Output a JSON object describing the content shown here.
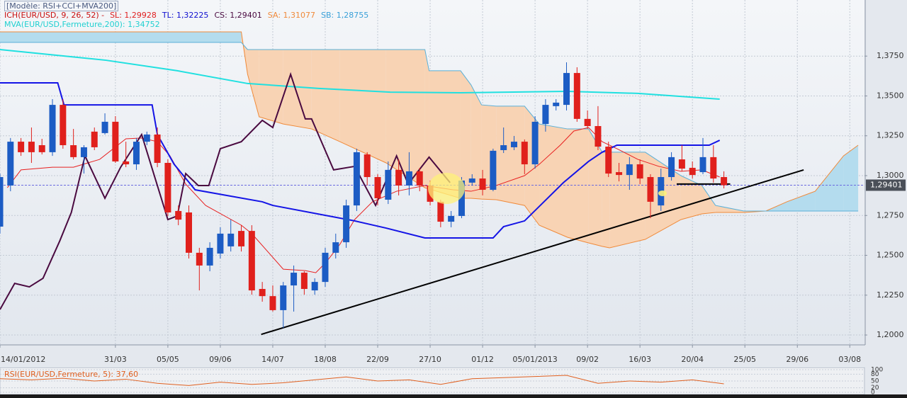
{
  "chart_data": {
    "type": "candlestick",
    "legend": [
      [
        {
          "text": "[Modèle: RSI+CCI+MVA200]",
          "color": "#4a5a80"
        }
      ],
      [
        {
          "text": "ICH(EUR/USD, 9, 26, 52) -",
          "color": "#c81010"
        },
        {
          "text": "SL: 1,29928",
          "color": "#e02020"
        },
        {
          "text": "TL: 1,32225",
          "color": "#1010d0"
        },
        {
          "text": "CS: 1,29401",
          "color": "#4a0a40"
        },
        {
          "text": "SA: 1,31077",
          "color": "#f08a3a"
        },
        {
          "text": "SB: 1,28755",
          "color": "#3aa0d8"
        }
      ],
      [
        {
          "text": "MVA(EUR/USD,Fermeture,200): 1,34752",
          "color": "#20d0d0"
        }
      ]
    ],
    "xlim": [
      0,
      82.4
    ],
    "ylim": [
      1.1938,
      1.4102
    ],
    "grid": true,
    "xticks": [
      {
        "value": 0,
        "label": "14/01/2012"
      },
      {
        "value": 11,
        "label": "31/03"
      },
      {
        "value": 16,
        "label": "05/05"
      },
      {
        "value": 21,
        "label": "09/06"
      },
      {
        "value": 26,
        "label": "14/07"
      },
      {
        "value": 31,
        "label": "18/08"
      },
      {
        "value": 36,
        "label": "22/09"
      },
      {
        "value": 41,
        "label": "27/10"
      },
      {
        "value": 46,
        "label": "01/12"
      },
      {
        "value": 51,
        "label": "05/01/2013"
      },
      {
        "value": 56,
        "label": "09/02"
      },
      {
        "value": 61,
        "label": "16/03"
      },
      {
        "value": 66,
        "label": "20/04"
      },
      {
        "value": 71,
        "label": "25/05"
      },
      {
        "value": 76,
        "label": "29/06"
      },
      {
        "value": 81,
        "label": "03/08"
      }
    ],
    "yticks": [
      {
        "value": 1.2,
        "label": "1,2000"
      },
      {
        "value": 1.225,
        "label": "1,2250"
      },
      {
        "value": 1.25,
        "label": "1,2500"
      },
      {
        "value": 1.275,
        "label": "1,2750"
      },
      {
        "value": 1.3,
        "label": "1,3000"
      },
      {
        "value": 1.325,
        "label": "1,3250"
      },
      {
        "value": 1.35,
        "label": "1,3500"
      },
      {
        "value": 1.375,
        "label": "1,3750"
      }
    ],
    "last_price": {
      "value": 1.29401,
      "label": "1,29401"
    },
    "candles": {
      "up_color": "#1c5cc4",
      "down_color": "#e0201c",
      "x": [
        0,
        1,
        2,
        3,
        4,
        5,
        6,
        7,
        8,
        9,
        10,
        11,
        12,
        13,
        14,
        15,
        16,
        17,
        18,
        19,
        20,
        21,
        22,
        23,
        24,
        25,
        26,
        27,
        28,
        29,
        30,
        31,
        32,
        33,
        34,
        35,
        36,
        37,
        38,
        39,
        40,
        41,
        42,
        43,
        44,
        45,
        46,
        47,
        48,
        49,
        50,
        51,
        52,
        53,
        54,
        55,
        56,
        57,
        58,
        59,
        60,
        61,
        62,
        63,
        64,
        65,
        66,
        67,
        68,
        69
      ],
      "open": [
        1.268,
        1.2938,
        1.3213,
        1.3213,
        1.3191,
        1.3147,
        1.3444,
        1.3191,
        1.3116,
        1.3276,
        1.3267,
        1.3338,
        1.3089,
        1.3071,
        1.3213,
        1.3258,
        1.308,
        1.2778,
        1.2769,
        1.2516,
        1.2436,
        1.2511,
        1.2556,
        1.2653,
        1.2653,
        1.2289,
        1.2244,
        1.2156,
        1.2311,
        1.2391,
        1.228,
        1.2333,
        1.2516,
        1.2582,
        1.2813,
        1.3133,
        1.2991,
        1.2849,
        1.3036,
        1.2938,
        1.3027,
        1.2938,
        1.2836,
        1.2711,
        1.2747,
        1.2956,
        1.2982,
        1.2911,
        1.316,
        1.3178,
        1.3213,
        1.3071,
        1.3324,
        1.3436,
        1.3444,
        1.3644,
        1.3356,
        1.3311,
        1.3182,
        1.3022,
        1.3004,
        1.3071,
        1.2991,
        1.2813,
        1.2991,
        1.3102,
        1.3049,
        1.3022,
        1.3116,
        1.2991
      ],
      "high": [
        1.3013,
        1.3236,
        1.3236,
        1.3302,
        1.3231,
        1.348,
        1.348,
        1.3293,
        1.3191,
        1.3302,
        1.3391,
        1.3373,
        1.3213,
        1.3236,
        1.3276,
        1.3302,
        1.3102,
        1.2813,
        1.2813,
        1.2547,
        1.2582,
        1.2676,
        1.2724,
        1.2689,
        1.2689,
        1.2333,
        1.2311,
        1.2333,
        1.2436,
        1.24,
        1.2356,
        1.2547,
        1.2636,
        1.2849,
        1.3169,
        1.3147,
        1.3009,
        1.3089,
        1.3102,
        1.3147,
        1.3049,
        1.2969,
        1.2849,
        1.2778,
        1.2991,
        1.3009,
        1.3036,
        1.3169,
        1.3302,
        1.3249,
        1.3227,
        1.3373,
        1.348,
        1.348,
        1.3711,
        1.368,
        1.3409,
        1.3436,
        1.3213,
        1.308,
        1.3116,
        1.3102,
        1.3009,
        1.3044,
        1.3147,
        1.3191,
        1.3089,
        1.3236,
        1.3191,
        1.3027
      ],
      "low": [
        1.2636,
        1.2902,
        1.3124,
        1.308,
        1.3133,
        1.3124,
        1.3169,
        1.3102,
        1.3013,
        1.316,
        1.3258,
        1.308,
        1.3053,
        1.3036,
        1.3191,
        1.3053,
        1.2747,
        1.2689,
        1.248,
        1.228,
        1.24,
        1.248,
        1.2524,
        1.2524,
        1.2253,
        1.2209,
        1.2147,
        1.2044,
        1.2147,
        1.2253,
        1.2253,
        1.2302,
        1.248,
        1.2547,
        1.2778,
        1.2938,
        1.2813,
        1.2822,
        1.2876,
        1.2876,
        1.2902,
        1.2813,
        1.2676,
        1.2676,
        1.2733,
        1.2938,
        1.2876,
        1.2902,
        1.3142,
        1.316,
        1.3009,
        1.3044,
        1.3276,
        1.3409,
        1.3409,
        1.3338,
        1.3293,
        1.316,
        1.2991,
        1.2964,
        1.2911,
        1.2947,
        1.2733,
        1.2778,
        1.2969,
        1.3027,
        1.2982,
        1.3009,
        1.2956,
        1.292
      ],
      "close": [
        1.2991,
        1.3213,
        1.3147,
        1.3147,
        1.3147,
        1.3444,
        1.3191,
        1.3116,
        1.3178,
        1.3178,
        1.3338,
        1.3089,
        1.3071,
        1.3213,
        1.3258,
        1.308,
        1.2769,
        1.2724,
        1.2516,
        1.2436,
        1.2547,
        1.2636,
        1.2636,
        1.2556,
        1.228,
        1.2244,
        1.2156,
        1.2311,
        1.2391,
        1.2289,
        1.2333,
        1.2516,
        1.2582,
        1.2813,
        1.3147,
        1.2991,
        1.2858,
        1.3036,
        1.2938,
        1.3027,
        1.2938,
        1.2836,
        1.2711,
        1.2747,
        1.2969,
        1.2982,
        1.2911,
        1.3156,
        1.3191,
        1.3213,
        1.3071,
        1.3338,
        1.3444,
        1.3458,
        1.3644,
        1.3356,
        1.3311,
        1.3182,
        1.3013,
        1.3004,
        1.3071,
        1.2982,
        1.2836,
        1.2991,
        1.3116,
        1.3044,
        1.3004,
        1.3116,
        1.2982,
        1.294
      ]
    },
    "cloud": {
      "a_color": "#f08a3a",
      "b_color": "#5ab0d8",
      "fill_a_above": "#b4dcee",
      "fill_b_above": "#f8d3b4",
      "x": [
        0,
        23.0,
        23.6,
        24.7,
        27.0,
        29.7,
        32.4,
        36.8,
        40.5,
        40.9,
        43.9,
        44.9,
        45.9,
        47.3,
        50.0,
        51.4,
        54.1,
        56.1,
        57.4,
        58.1,
        61.5,
        64.9,
        66.9,
        68.2,
        70.9,
        73.0,
        75.0,
        77.7,
        80.4,
        81.8
      ],
      "span_a": [
        1.3902,
        1.3902,
        1.3636,
        1.3369,
        1.3324,
        1.3293,
        1.3213,
        1.308,
        1.2924,
        1.2916,
        1.2858,
        1.2858,
        1.2853,
        1.2849,
        1.2813,
        1.2689,
        1.2613,
        1.2578,
        1.2556,
        1.2547,
        1.26,
        1.2724,
        1.276,
        1.2769,
        1.2769,
        1.2778,
        1.2836,
        1.2902,
        1.3124,
        1.3191
      ],
      "span_b": [
        1.3836,
        1.3836,
        1.3791,
        1.3791,
        1.3791,
        1.3791,
        1.3791,
        1.3791,
        1.3791,
        1.3658,
        1.3658,
        1.3569,
        1.3444,
        1.3436,
        1.3436,
        1.3324,
        1.3293,
        1.3293,
        1.3147,
        1.3147,
        1.3147,
        1.3,
        1.2938,
        1.2813,
        1.2778,
        1.2778,
        1.2778,
        1.2778,
        1.2778,
        1.2778
      ]
    },
    "lines": [
      {
        "color": "#20e0e0",
        "width": 2,
        "x": [
          0,
          10.1,
          16.9,
          23.6,
          30.4,
          37.2,
          43.9,
          54.1,
          60.8,
          68.6
        ],
        "values": [
          1.3791,
          1.3724,
          1.3658,
          1.3578,
          1.3547,
          1.3524,
          1.352,
          1.3529,
          1.3516,
          1.348
        ]
      },
      {
        "color": "#e82020",
        "width": 1,
        "x": [
          0.7,
          2.0,
          5.0,
          7.0,
          9.5,
          12.0,
          13.5,
          15.0,
          16.2,
          17.7,
          19.6,
          23.0,
          24.0,
          27.0,
          29.1,
          30.1,
          31.1,
          32.4,
          33.8,
          35.5,
          37.8,
          40.5,
          43.2,
          44.9,
          47.3,
          50.0,
          51.4,
          53.4,
          54.7,
          56.1,
          57.4,
          58.8,
          60.8,
          62.8,
          64.9,
          66.9,
          68.6
        ],
        "values": [
          1.2924,
          1.3036,
          1.3053,
          1.3053,
          1.3102,
          1.3231,
          1.3236,
          1.3213,
          1.3124,
          1.2947,
          1.2813,
          1.2689,
          1.2636,
          1.2413,
          1.2404,
          1.2391,
          1.2458,
          1.2569,
          1.2724,
          1.2836,
          1.2902,
          1.2938,
          1.2911,
          1.2902,
          1.2938,
          1.3,
          1.3071,
          1.3191,
          1.328,
          1.3302,
          1.3213,
          1.3169,
          1.3102,
          1.3058,
          1.3027,
          1.3036,
          1.2991
        ]
      },
      {
        "color": "#1414e6",
        "width": 2,
        "x": [
          0,
          5.5,
          6.1,
          14.5,
          15.0,
          16.6,
          18.6,
          25.0,
          26.0,
          33.8,
          36.8,
          40.5,
          47.0,
          48.0,
          50.0,
          53.7,
          56.1,
          57.4,
          58.8,
          67.6,
          68.6
        ],
        "values": [
          1.3582,
          1.3582,
          1.3444,
          1.3444,
          1.3258,
          1.3071,
          1.2911,
          1.2836,
          1.2813,
          1.2716,
          1.2671,
          1.2609,
          1.2609,
          1.268,
          1.2716,
          1.2956,
          1.3089,
          1.3147,
          1.3191,
          1.3191,
          1.3222
        ]
      },
      {
        "color": "#4a0a40",
        "width": 2,
        "x": [
          0,
          1.4,
          2.8,
          4.1,
          5.7,
          6.8,
          8.1,
          10.0,
          11.5,
          13.5,
          16.0,
          16.9,
          17.7,
          18.9,
          19.9,
          21.0,
          23.0,
          25.0,
          26.0,
          27.7,
          29.1,
          29.7,
          31.8,
          33.8,
          35.8,
          37.8,
          38.9,
          40.9,
          42.9
        ],
        "values": [
          1.216,
          1.2324,
          1.2302,
          1.2356,
          1.2591,
          1.2769,
          1.3124,
          1.2858,
          1.3053,
          1.3258,
          1.2724,
          1.2747,
          1.3013,
          1.2938,
          1.2938,
          1.3169,
          1.3213,
          1.3347,
          1.3302,
          1.3636,
          1.3356,
          1.3356,
          1.3036,
          1.3058,
          1.2813,
          1.3124,
          1.2947,
          1.3116,
          1.2956
        ]
      },
      {
        "color": "#000000",
        "width": 2,
        "x": [
          24.9,
          76.6
        ],
        "values": [
          1.2004,
          1.3036
        ]
      },
      {
        "color": "#000000",
        "width": 2,
        "x": [
          64.5,
          69.6
        ],
        "values": [
          1.2947,
          1.2947
        ]
      }
    ],
    "rsi": {
      "label": "RSI(EUR/USD,Fermeture, 5): 37,60",
      "label_color": "#e06020",
      "color": "#e06020",
      "ylim": [
        0,
        100
      ],
      "yticks": [
        100,
        80,
        50,
        20,
        0
      ],
      "x": [
        0,
        3,
        6,
        9,
        12,
        15,
        18,
        21,
        24,
        27,
        30,
        33,
        36,
        39,
        42,
        45,
        48,
        51,
        54,
        57,
        60,
        63,
        66,
        69
      ],
      "values": [
        60,
        55,
        62,
        50,
        58,
        40,
        30,
        45,
        35,
        42,
        55,
        68,
        50,
        55,
        35,
        60,
        65,
        70,
        75,
        40,
        50,
        45,
        55,
        37.6
      ]
    }
  }
}
